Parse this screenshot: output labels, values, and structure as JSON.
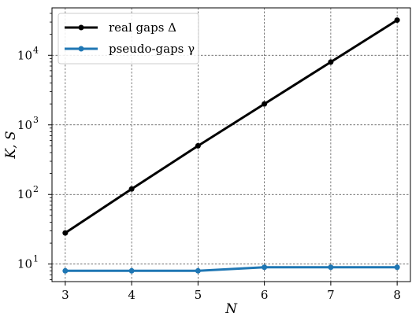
{
  "chart_data": {
    "type": "line",
    "x": [
      3,
      4,
      5,
      6,
      7,
      8
    ],
    "series": [
      {
        "name": "real gaps Δ",
        "values": [
          28,
          120,
          500,
          2000,
          8000,
          32000
        ],
        "color": "#000000"
      },
      {
        "name": "pseudo-gaps γ",
        "values": [
          8,
          8,
          8,
          9,
          9,
          9
        ],
        "color": "#1f77b4"
      }
    ],
    "xlabel": "N",
    "ylabel": "K, S",
    "xticks": [
      "3",
      "4",
      "5",
      "6",
      "7",
      "8"
    ],
    "yticks": [
      {
        "value": 10,
        "base": "10",
        "exp": "1"
      },
      {
        "value": 100,
        "base": "10",
        "exp": "2"
      },
      {
        "value": 1000,
        "base": "10",
        "exp": "3"
      },
      {
        "value": 10000,
        "base": "10",
        "exp": "4"
      }
    ],
    "xlim": [
      2.8,
      8.2
    ],
    "ylim": [
      5.6,
      48000
    ],
    "yscale": "log",
    "grid": true,
    "legend_position": "top-left"
  }
}
